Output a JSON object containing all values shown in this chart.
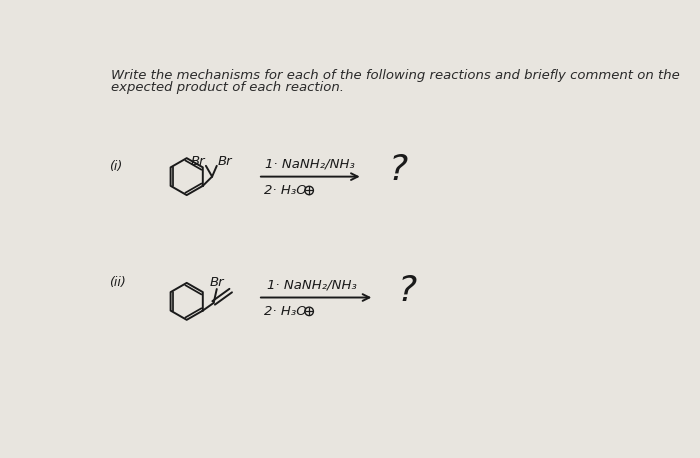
{
  "background_color": "#e8e5df",
  "title_line1": "Write the mechanisms for each of the following reactions and briefly comment on the",
  "title_line2": "expected product of each reaction.",
  "title_fontsize": 9.5,
  "title_color": "#2a2a2a",
  "label_i": "(i)",
  "label_ii": "(ii)",
  "reaction1_step1": "1· NaNH₂/NH₃",
  "reaction1_step2": "2· H₃O",
  "reaction2_step1": "1· NaNH₂/NH₃",
  "reaction2_step2": "2· H₃O",
  "question_mark": "?",
  "text_color": "#1a1a1a",
  "mol_color": "#1a1a1a"
}
